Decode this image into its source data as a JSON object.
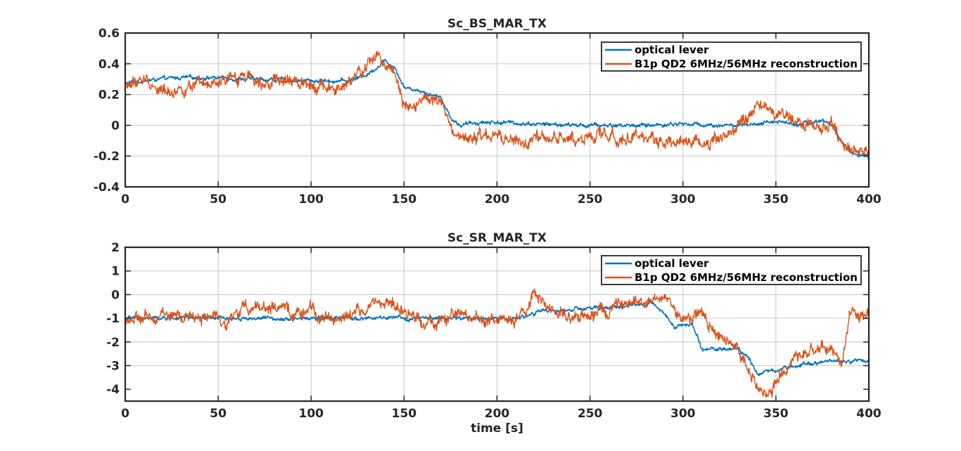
{
  "chart_data": [
    {
      "type": "line",
      "title": "Sc_BS_MAR_TX",
      "xlabel": "",
      "ylabel": "",
      "xlim": [
        0,
        400
      ],
      "ylim": [
        -0.4,
        0.6
      ],
      "xticks": [
        0,
        50,
        100,
        150,
        200,
        250,
        300,
        350,
        400
      ],
      "yticks": [
        -0.4,
        -0.2,
        0,
        0.2,
        0.4,
        0.6
      ],
      "xtick_labels": [
        "0",
        "50",
        "100",
        "150",
        "200",
        "250",
        "300",
        "350",
        "400"
      ],
      "ytick_labels": [
        "-0.4",
        "-0.2",
        "0",
        "0.2",
        "0.4",
        "0.6"
      ],
      "grid": true,
      "legend_position": "top-right",
      "series": [
        {
          "name": "optical lever",
          "color": "#0072bd",
          "x": [
            0,
            10,
            20,
            30,
            50,
            70,
            100,
            120,
            130,
            140,
            145,
            150,
            160,
            170,
            175,
            180,
            190,
            200,
            220,
            240,
            260,
            280,
            300,
            320,
            340,
            350,
            360,
            370,
            375,
            380,
            385,
            390,
            395,
            400
          ],
          "y": [
            0.27,
            0.29,
            0.3,
            0.31,
            0.31,
            0.3,
            0.29,
            0.29,
            0.33,
            0.42,
            0.38,
            0.25,
            0.22,
            0.18,
            0.05,
            0.0,
            0.02,
            0.02,
            0.01,
            0.0,
            0.0,
            0.0,
            0.01,
            0.0,
            0.0,
            0.03,
            0.01,
            0.02,
            0.03,
            0.0,
            -0.1,
            -0.17,
            -0.2,
            -0.21
          ]
        },
        {
          "name": "B1p QD2 6MHz/56MHz reconstruction",
          "color": "#d95319",
          "x": [
            0,
            10,
            20,
            30,
            50,
            65,
            80,
            100,
            115,
            125,
            135,
            140,
            145,
            150,
            155,
            160,
            170,
            175,
            180,
            190,
            200,
            215,
            220,
            240,
            260,
            280,
            300,
            310,
            320,
            330,
            340,
            350,
            360,
            370,
            380,
            385,
            390,
            395,
            400
          ],
          "y": [
            0.25,
            0.3,
            0.22,
            0.24,
            0.26,
            0.33,
            0.28,
            0.28,
            0.22,
            0.32,
            0.45,
            0.4,
            0.36,
            0.15,
            0.13,
            0.17,
            0.15,
            -0.04,
            -0.1,
            -0.08,
            -0.08,
            -0.12,
            -0.1,
            -0.08,
            -0.07,
            -0.09,
            -0.1,
            -0.12,
            -0.07,
            -0.02,
            0.12,
            0.08,
            0.02,
            0.0,
            0.0,
            -0.1,
            -0.15,
            -0.17,
            -0.15
          ]
        }
      ]
    },
    {
      "type": "line",
      "title": "Sc_SR_MAR_TX",
      "xlabel": "time [s]",
      "ylabel": "",
      "xlim": [
        0,
        400
      ],
      "ylim": [
        -4.5,
        2
      ],
      "xticks": [
        0,
        50,
        100,
        150,
        200,
        250,
        300,
        350,
        400
      ],
      "yticks": [
        -4,
        -3,
        -2,
        -1,
        0,
        1,
        2
      ],
      "xtick_labels": [
        "0",
        "50",
        "100",
        "150",
        "200",
        "250",
        "300",
        "350",
        "400"
      ],
      "ytick_labels": [
        "-4",
        "-3",
        "-2",
        "-1",
        "0",
        "1",
        "2"
      ],
      "grid": true,
      "legend_position": "top-right",
      "series": [
        {
          "name": "optical lever",
          "color": "#0072bd",
          "x": [
            0,
            50,
            100,
            150,
            200,
            210,
            215,
            220,
            225,
            240,
            260,
            280,
            285,
            290,
            295,
            305,
            308,
            310,
            320,
            330,
            335,
            340,
            350,
            360,
            370,
            380,
            390,
            400
          ],
          "y": [
            -1.0,
            -1.0,
            -1.0,
            -1.0,
            -1.0,
            -1.0,
            -0.9,
            -0.8,
            -0.7,
            -0.65,
            -0.55,
            -0.4,
            -0.45,
            -0.75,
            -1.3,
            -1.3,
            -1.8,
            -2.3,
            -2.3,
            -2.3,
            -2.6,
            -3.3,
            -3.2,
            -3.0,
            -2.85,
            -2.8,
            -2.8,
            -2.8
          ]
        },
        {
          "name": "B1p QD2 6MHz/56MHz reconstruction",
          "color": "#d95319",
          "x": [
            0,
            10,
            20,
            30,
            40,
            55,
            60,
            70,
            80,
            90,
            100,
            110,
            120,
            130,
            140,
            145,
            150,
            160,
            170,
            180,
            190,
            200,
            210,
            215,
            220,
            225,
            235,
            245,
            255,
            265,
            275,
            285,
            290,
            295,
            300,
            305,
            310,
            320,
            330,
            335,
            340,
            345,
            350,
            360,
            370,
            380,
            385,
            390,
            395,
            400
          ],
          "y": [
            -1.0,
            -1.1,
            -0.8,
            -1.0,
            -0.9,
            -1.1,
            -0.8,
            -0.4,
            -0.6,
            -0.8,
            -0.7,
            -1.0,
            -0.9,
            -0.6,
            -0.2,
            -0.5,
            -0.9,
            -1.0,
            -1.2,
            -0.8,
            -1.1,
            -1.0,
            -1.2,
            -0.8,
            0.1,
            -0.5,
            -0.8,
            -0.9,
            -0.8,
            -0.6,
            -0.4,
            -0.3,
            0.0,
            -0.6,
            -1.0,
            -1.1,
            -0.6,
            -1.9,
            -2.4,
            -3.0,
            -4.0,
            -4.2,
            -3.7,
            -2.8,
            -2.3,
            -2.2,
            -3.0,
            -0.5,
            -1.0,
            -0.7
          ]
        }
      ]
    }
  ]
}
